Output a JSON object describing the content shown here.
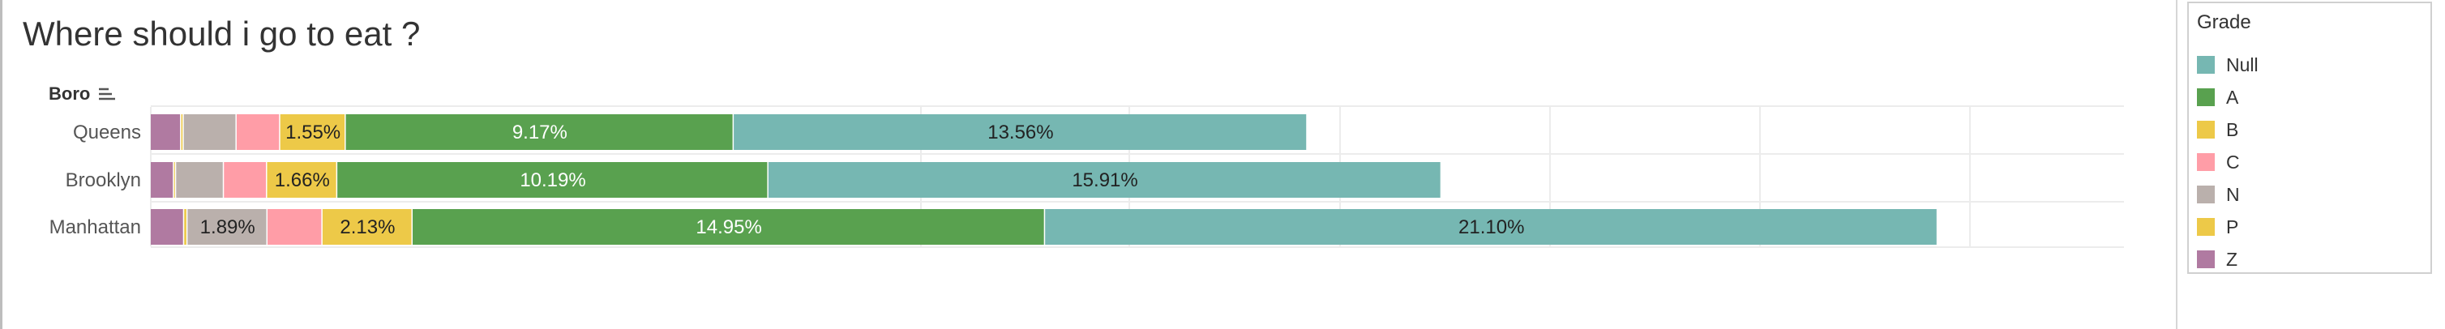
{
  "chart_data": {
    "type": "bar",
    "orientation": "horizontal",
    "stacked": true,
    "title": "Where should i go to eat ?",
    "row_header": "Boro",
    "categories": [
      "Queens",
      "Brooklyn",
      "Manhattan"
    ],
    "legend_title": "Grade",
    "legend_position": "right",
    "grid": true,
    "series": [
      {
        "name": "Z",
        "color": "#b07aa1",
        "values": [
          0.72,
          0.55,
          0.79
        ]
      },
      {
        "name": "P",
        "color": "#edc948",
        "values": [
          0.06,
          0.05,
          0.08
        ]
      },
      {
        "name": "N",
        "color": "#bab0ac",
        "values": [
          1.25,
          1.13,
          1.89
        ]
      },
      {
        "name": "C",
        "color": "#ff9da7",
        "values": [
          1.03,
          1.02,
          1.3
        ]
      },
      {
        "name": "B",
        "color": "#edc948",
        "values": [
          1.55,
          1.66,
          2.13
        ]
      },
      {
        "name": "A",
        "color": "#59a14f",
        "values": [
          9.17,
          10.19,
          14.95
        ]
      },
      {
        "name": "Null",
        "color": "#76b7b2",
        "values": [
          13.56,
          15.91,
          21.1
        ]
      }
    ],
    "data_labels": [
      [
        null,
        null,
        null,
        null,
        "1.55%",
        "9.17%",
        "13.56%"
      ],
      [
        null,
        null,
        null,
        null,
        "1.66%",
        "10.19%",
        "15.91%"
      ],
      [
        null,
        null,
        "1.89%",
        null,
        "2.13%",
        "14.95%",
        "21.10%"
      ]
    ],
    "legend_order": [
      "Null",
      "A",
      "B",
      "C",
      "N",
      "P",
      "Z"
    ]
  }
}
